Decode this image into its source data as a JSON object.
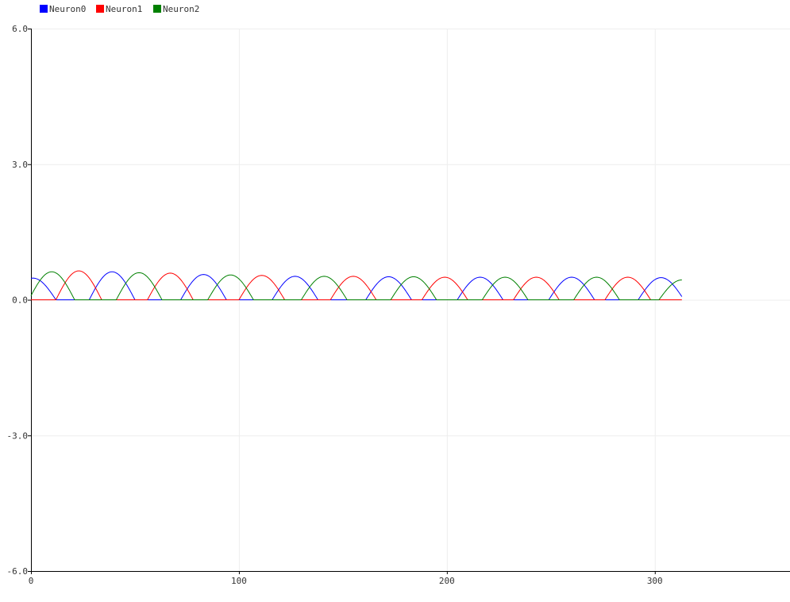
{
  "chart_data": {
    "type": "line",
    "title": "",
    "xlabel": "",
    "ylabel": "",
    "xlim": [
      0,
      365
    ],
    "ylim": [
      -6.0,
      6.0
    ],
    "x_ticks": [
      0,
      100,
      200,
      300
    ],
    "x_tick_labels": [
      "0",
      "100",
      "200",
      "300"
    ],
    "y_ticks": [
      6.0,
      3.0,
      0.0,
      -3.0,
      -6.0
    ],
    "y_tick_labels": [
      "6.0",
      "3.0",
      "0.0",
      "-3.0",
      "-6.0"
    ],
    "grid": true,
    "legend_position": "top-left",
    "x_max": 313,
    "series": [
      {
        "name": "Neuron0",
        "color": "#0000ff",
        "peaks": [
          {
            "x": 1,
            "y": 0.48
          },
          {
            "x": 39,
            "y": 0.62
          },
          {
            "x": 83,
            "y": 0.56
          },
          {
            "x": 127,
            "y": 0.52
          },
          {
            "x": 172,
            "y": 0.51
          },
          {
            "x": 216,
            "y": 0.5
          },
          {
            "x": 260,
            "y": 0.5
          },
          {
            "x": 303,
            "y": 0.49
          }
        ]
      },
      {
        "name": "Neuron1",
        "color": "#ff0000",
        "peaks": [
          {
            "x": 23,
            "y": 0.64
          },
          {
            "x": 67,
            "y": 0.59
          },
          {
            "x": 111,
            "y": 0.54
          },
          {
            "x": 155,
            "y": 0.52
          },
          {
            "x": 199,
            "y": 0.5
          },
          {
            "x": 243,
            "y": 0.5
          },
          {
            "x": 287,
            "y": 0.5
          }
        ]
      },
      {
        "name": "Neuron2",
        "color": "#008000",
        "peaks": [
          {
            "x": 10,
            "y": 0.62
          },
          {
            "x": 52,
            "y": 0.6
          },
          {
            "x": 96,
            "y": 0.55
          },
          {
            "x": 141,
            "y": 0.52
          },
          {
            "x": 184,
            "y": 0.51
          },
          {
            "x": 228,
            "y": 0.5
          },
          {
            "x": 272,
            "y": 0.5
          },
          {
            "x": 313,
            "y": 0.44
          }
        ]
      }
    ]
  }
}
